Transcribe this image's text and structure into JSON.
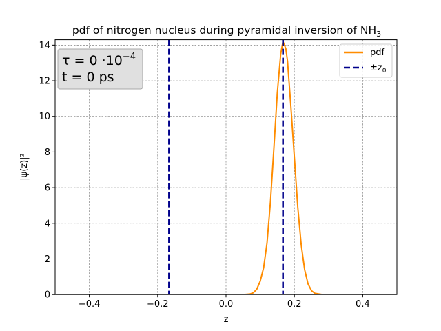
{
  "chart_data": {
    "type": "line",
    "title": "pdf of nitrogen nucleus during pyramidal inversion of NH",
    "title_subscript": "3",
    "xlabel": "z",
    "ylabel": "|ψ(z)|²",
    "xlim": [
      -0.5,
      0.5
    ],
    "ylim": [
      0,
      14.3
    ],
    "xticks": [
      -0.4,
      -0.2,
      0.0,
      0.2,
      0.4
    ],
    "xtick_labels": [
      "−0.4",
      "−0.2",
      "0.0",
      "0.2",
      "0.4"
    ],
    "yticks": [
      0,
      2,
      4,
      6,
      8,
      10,
      12,
      14
    ],
    "ytick_labels": [
      "0",
      "2",
      "4",
      "6",
      "8",
      "10",
      "12",
      "14"
    ],
    "grid": true,
    "legend_position": "top-right",
    "annotation": {
      "tau_label": "τ = 0 ·10",
      "tau_exponent": "−4",
      "time_label": "t =  0 ps"
    },
    "series": [
      {
        "name": "pdf",
        "style": "solid",
        "color": "#ff8c00",
        "x": [
          -0.5,
          0.0,
          0.05,
          0.07,
          0.08,
          0.09,
          0.1,
          0.11,
          0.12,
          0.13,
          0.14,
          0.15,
          0.16,
          0.1667,
          0.175,
          0.18,
          0.19,
          0.2,
          0.21,
          0.22,
          0.23,
          0.24,
          0.25,
          0.26,
          0.28,
          0.32,
          0.5
        ],
        "y": [
          0,
          0,
          0.0,
          0.03,
          0.1,
          0.3,
          0.75,
          1.5,
          2.9,
          5.2,
          8.2,
          11.3,
          13.5,
          14.2,
          13.8,
          13.1,
          10.5,
          7.7,
          4.9,
          2.8,
          1.4,
          0.6,
          0.22,
          0.07,
          0.01,
          0,
          0
        ]
      },
      {
        "name": "±z",
        "name_subscript": "0",
        "style": "dashed",
        "color": "#00008b",
        "vlines": [
          -0.1667,
          0.1667
        ]
      }
    ]
  },
  "colors": {
    "pdf_line": "#ff8c00",
    "z0_line": "#00008b",
    "grid": "#808080",
    "annotation_box": "#e0e0e0"
  }
}
